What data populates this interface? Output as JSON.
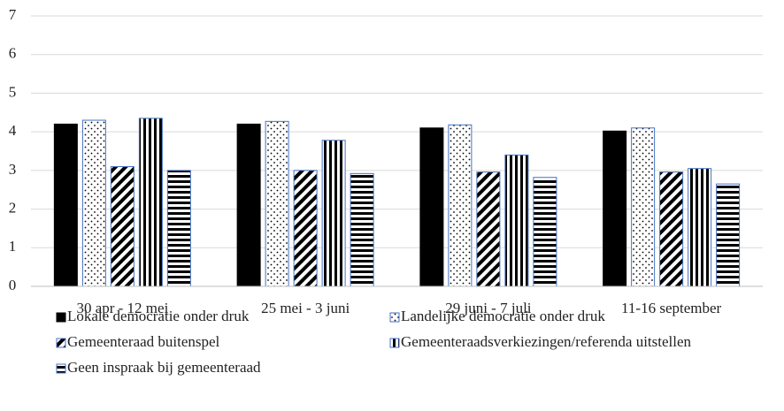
{
  "chart_data": {
    "type": "bar",
    "categories": [
      "30 apr - 12 mei",
      "25 mei - 3 juni",
      "29 juni - 7 juli",
      "11-16 september"
    ],
    "series": [
      {
        "name": "Lokale democratie onder druk",
        "color": "#000000",
        "pattern": "solid",
        "values": [
          4.2,
          4.2,
          4.1,
          4.02
        ]
      },
      {
        "name": "Landelijke democratie onder druk",
        "color": "#000000",
        "pattern": "dots",
        "values": [
          4.3,
          4.27,
          4.18,
          4.1
        ]
      },
      {
        "name": "Gemeenteraad buitenspel",
        "color": "#000000",
        "pattern": "diagonal",
        "values": [
          3.1,
          3.0,
          2.96,
          2.96
        ]
      },
      {
        "name": "Gemeenteraadsverkiezingen/referenda uitstellen",
        "color": "#000000",
        "pattern": "vertical",
        "values": [
          4.35,
          3.78,
          3.4,
          3.05
        ]
      },
      {
        "name": "Geen inspraak bij gemeenteraad",
        "color": "#000000",
        "pattern": "horizontal",
        "values": [
          3.0,
          2.92,
          2.82,
          2.65
        ]
      }
    ],
    "ylim": [
      0,
      7
    ],
    "yticks": [
      0,
      1,
      2,
      3,
      4,
      5,
      6,
      7
    ],
    "grid": true,
    "legend": "bottom"
  }
}
